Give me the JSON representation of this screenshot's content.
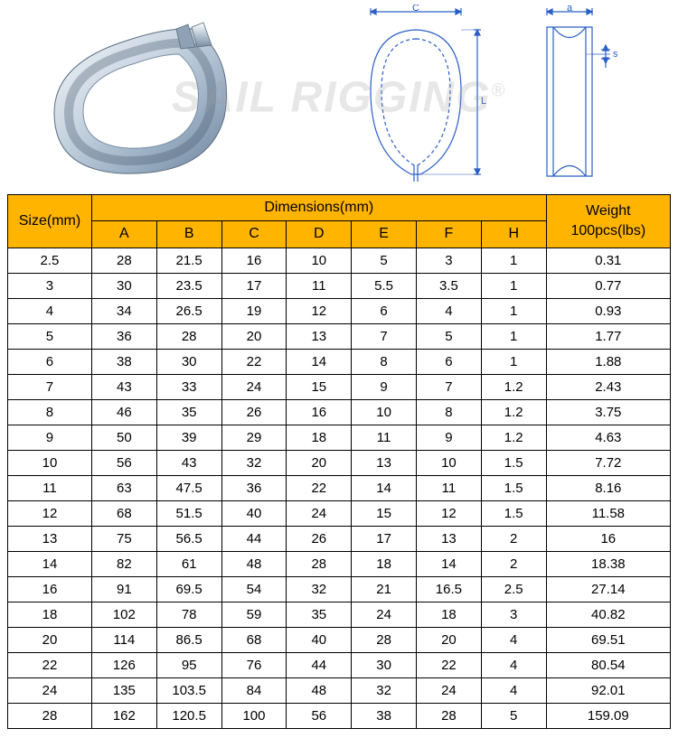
{
  "watermark_text": "SAIL RIGGING",
  "diagram": {
    "label_C": "C",
    "label_L": "L",
    "label_a": "a",
    "label_s": "s",
    "stroke_color": "#2b5fc8",
    "stroke_width": 1.2
  },
  "table": {
    "header_bg": "#ffb400",
    "border_color": "#000000",
    "size_header": "Size(mm)",
    "dimensions_header": "Dimensions(mm)",
    "weight_header": "Weight 100pcs(lbs)",
    "sub_columns": [
      "A",
      "B",
      "C",
      "D",
      "E",
      "F",
      "H"
    ],
    "rows": [
      {
        "size": "2.5",
        "dims": [
          "28",
          "21.5",
          "16",
          "10",
          "5",
          "3",
          "1"
        ],
        "weight": "0.31"
      },
      {
        "size": "3",
        "dims": [
          "30",
          "23.5",
          "17",
          "11",
          "5.5",
          "3.5",
          "1"
        ],
        "weight": "0.77"
      },
      {
        "size": "4",
        "dims": [
          "34",
          "26.5",
          "19",
          "12",
          "6",
          "4",
          "1"
        ],
        "weight": "0.93"
      },
      {
        "size": "5",
        "dims": [
          "36",
          "28",
          "20",
          "13",
          "7",
          "5",
          "1"
        ],
        "weight": "1.77"
      },
      {
        "size": "6",
        "dims": [
          "38",
          "30",
          "22",
          "14",
          "8",
          "6",
          "1"
        ],
        "weight": "1.88"
      },
      {
        "size": "7",
        "dims": [
          "43",
          "33",
          "24",
          "15",
          "9",
          "7",
          "1.2"
        ],
        "weight": "2.43"
      },
      {
        "size": "8",
        "dims": [
          "46",
          "35",
          "26",
          "16",
          "10",
          "8",
          "1.2"
        ],
        "weight": "3.75"
      },
      {
        "size": "9",
        "dims": [
          "50",
          "39",
          "29",
          "18",
          "11",
          "9",
          "1.2"
        ],
        "weight": "4.63"
      },
      {
        "size": "10",
        "dims": [
          "56",
          "43",
          "32",
          "20",
          "13",
          "10",
          "1.5"
        ],
        "weight": "7.72"
      },
      {
        "size": "11",
        "dims": [
          "63",
          "47.5",
          "36",
          "22",
          "14",
          "11",
          "1.5"
        ],
        "weight": "8.16"
      },
      {
        "size": "12",
        "dims": [
          "68",
          "51.5",
          "40",
          "24",
          "15",
          "12",
          "1.5"
        ],
        "weight": "11.58"
      },
      {
        "size": "13",
        "dims": [
          "75",
          "56.5",
          "44",
          "26",
          "17",
          "13",
          "2"
        ],
        "weight": "16"
      },
      {
        "size": "14",
        "dims": [
          "82",
          "61",
          "48",
          "28",
          "18",
          "14",
          "2"
        ],
        "weight": "18.38"
      },
      {
        "size": "16",
        "dims": [
          "91",
          "69.5",
          "54",
          "32",
          "21",
          "16.5",
          "2.5"
        ],
        "weight": "27.14"
      },
      {
        "size": "18",
        "dims": [
          "102",
          "78",
          "59",
          "35",
          "24",
          "18",
          "3"
        ],
        "weight": "40.82"
      },
      {
        "size": "20",
        "dims": [
          "114",
          "86.5",
          "68",
          "40",
          "28",
          "20",
          "4"
        ],
        "weight": "69.51"
      },
      {
        "size": "22",
        "dims": [
          "126",
          "95",
          "76",
          "44",
          "30",
          "22",
          "4"
        ],
        "weight": "80.54"
      },
      {
        "size": "24",
        "dims": [
          "135",
          "103.5",
          "84",
          "48",
          "32",
          "24",
          "4"
        ],
        "weight": "92.01"
      },
      {
        "size": "28",
        "dims": [
          "162",
          "120.5",
          "100",
          "56",
          "38",
          "28",
          "5"
        ],
        "weight": "159.09"
      }
    ]
  }
}
